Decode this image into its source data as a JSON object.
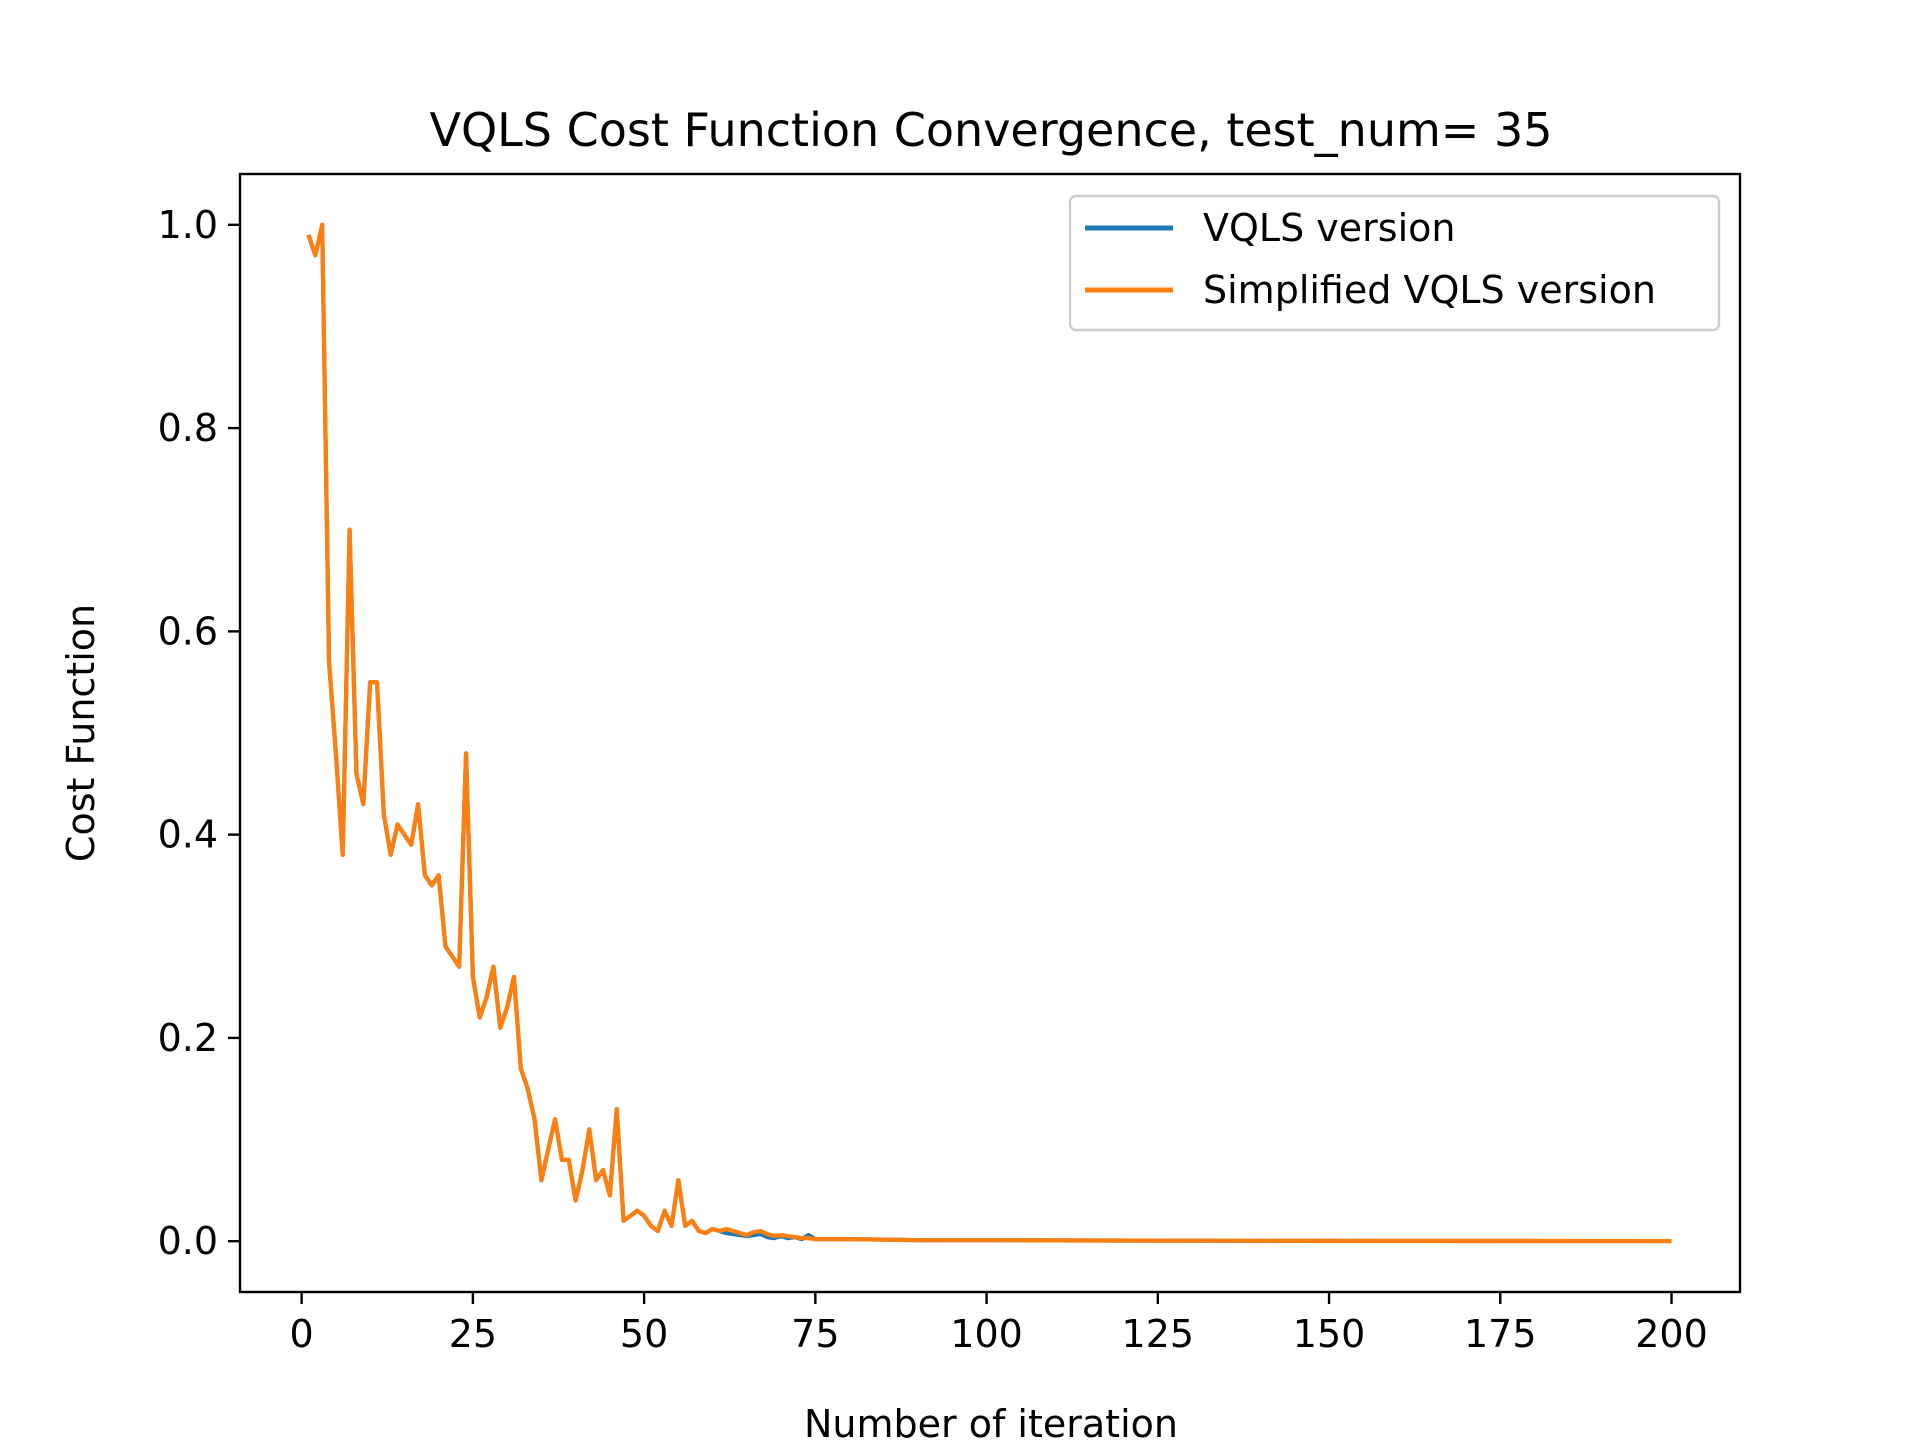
{
  "chart_data": {
    "type": "line",
    "title": "VQLS Cost Function Convergence, test_num= 35",
    "xlabel": "Number of iteration",
    "ylabel": "Cost Function",
    "xlim": [
      -9,
      210
    ],
    "ylim": [
      -0.05,
      1.05
    ],
    "xticks": [
      0,
      25,
      50,
      75,
      100,
      125,
      150,
      175,
      200
    ],
    "xtick_labels": [
      "0",
      "25",
      "50",
      "75",
      "100",
      "125",
      "150",
      "175",
      "200"
    ],
    "yticks": [
      0.0,
      0.2,
      0.4,
      0.6,
      0.8,
      1.0
    ],
    "ytick_labels": [
      "0.0",
      "0.2",
      "0.4",
      "0.6",
      "0.8",
      "1.0"
    ],
    "grid": false,
    "legend_position": "top-right",
    "colors": {
      "vqls": "#1f77b4",
      "simplified": "#ff7f0e"
    },
    "series": [
      {
        "name": "VQLS version",
        "color": "#1f77b4",
        "x": [
          1,
          2,
          3,
          4,
          5,
          6,
          7,
          8,
          9,
          10,
          11,
          12,
          13,
          14,
          15,
          16,
          17,
          18,
          19,
          20,
          21,
          22,
          23,
          24,
          25,
          26,
          27,
          28,
          29,
          30,
          31,
          32,
          33,
          34,
          35,
          36,
          37,
          38,
          39,
          40,
          41,
          42,
          43,
          44,
          45,
          46,
          47,
          48,
          49,
          50,
          51,
          52,
          53,
          54,
          55,
          56,
          57,
          58,
          59,
          60,
          61,
          62,
          63,
          64,
          65,
          66,
          67,
          68,
          69,
          70,
          71,
          72,
          73,
          74,
          75,
          76,
          80,
          85,
          90,
          100,
          110,
          125,
          150,
          175,
          200
        ],
        "y": [
          0.99,
          0.97,
          1.0,
          0.57,
          0.48,
          0.38,
          0.7,
          0.46,
          0.43,
          0.55,
          0.55,
          0.42,
          0.38,
          0.41,
          0.4,
          0.39,
          0.43,
          0.36,
          0.35,
          0.36,
          0.29,
          0.28,
          0.27,
          0.48,
          0.26,
          0.22,
          0.24,
          0.27,
          0.21,
          0.23,
          0.26,
          0.17,
          0.15,
          0.12,
          0.06,
          0.09,
          0.12,
          0.08,
          0.08,
          0.04,
          0.07,
          0.11,
          0.06,
          0.07,
          0.045,
          0.13,
          0.02,
          0.025,
          0.03,
          0.025,
          0.015,
          0.01,
          0.03,
          0.015,
          0.06,
          0.015,
          0.02,
          0.01,
          0.008,
          0.012,
          0.01,
          0.008,
          0.007,
          0.006,
          0.005,
          0.006,
          0.007,
          0.004,
          0.003,
          0.005,
          0.003,
          0.004,
          0.002,
          0.006,
          0.002,
          0.002,
          0.002,
          0.0015,
          0.001,
          0.001,
          0.0008,
          0.0005,
          0.0003,
          0.0002,
          0.0001
        ]
      },
      {
        "name": "Simplified VQLS version",
        "color": "#ff7f0e",
        "x": [
          1,
          2,
          3,
          4,
          5,
          6,
          7,
          8,
          9,
          10,
          11,
          12,
          13,
          14,
          15,
          16,
          17,
          18,
          19,
          20,
          21,
          22,
          23,
          24,
          25,
          26,
          27,
          28,
          29,
          30,
          31,
          32,
          33,
          34,
          35,
          36,
          37,
          38,
          39,
          40,
          41,
          42,
          43,
          44,
          45,
          46,
          47,
          48,
          49,
          50,
          51,
          52,
          53,
          54,
          55,
          56,
          57,
          58,
          59,
          60,
          61,
          62,
          63,
          64,
          65,
          66,
          67,
          68,
          69,
          70,
          71,
          72,
          73,
          74,
          75,
          76,
          80,
          85,
          90,
          100,
          110,
          125,
          150,
          175,
          200
        ],
        "y": [
          0.99,
          0.97,
          1.0,
          0.57,
          0.48,
          0.38,
          0.7,
          0.46,
          0.43,
          0.55,
          0.55,
          0.42,
          0.38,
          0.41,
          0.4,
          0.39,
          0.43,
          0.36,
          0.35,
          0.36,
          0.29,
          0.28,
          0.27,
          0.48,
          0.26,
          0.22,
          0.24,
          0.27,
          0.21,
          0.23,
          0.26,
          0.17,
          0.15,
          0.12,
          0.06,
          0.09,
          0.12,
          0.08,
          0.08,
          0.04,
          0.07,
          0.11,
          0.06,
          0.07,
          0.045,
          0.13,
          0.02,
          0.025,
          0.03,
          0.025,
          0.015,
          0.01,
          0.03,
          0.015,
          0.06,
          0.015,
          0.02,
          0.01,
          0.008,
          0.012,
          0.01,
          0.012,
          0.01,
          0.008,
          0.006,
          0.009,
          0.01,
          0.007,
          0.005,
          0.006,
          0.005,
          0.004,
          0.003,
          0.003,
          0.002,
          0.002,
          0.002,
          0.0015,
          0.001,
          0.001,
          0.0008,
          0.0005,
          0.0003,
          0.0002,
          0.0001
        ]
      }
    ]
  }
}
